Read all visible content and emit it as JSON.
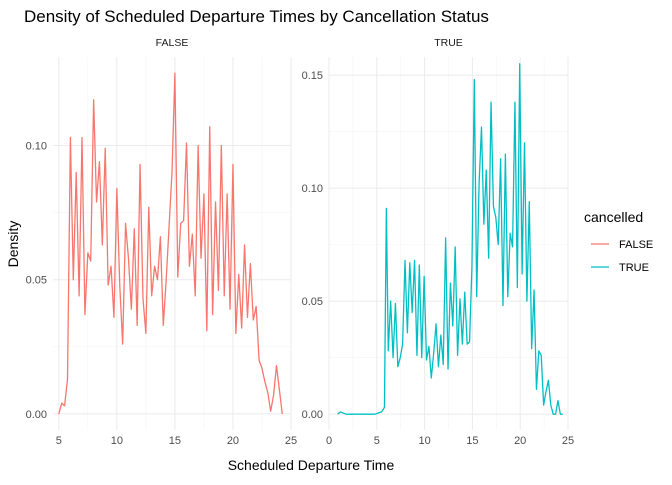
{
  "chart_data": {
    "type": "line",
    "title": "Density of Scheduled Departure Times by Cancellation Status",
    "xlabel": "Scheduled Departure Time",
    "ylabel": "Density",
    "grid": true,
    "legend": {
      "title": "cancelled",
      "position": "right",
      "entries": [
        {
          "label": "FALSE",
          "color": "#F8766D"
        },
        {
          "label": "TRUE",
          "color": "#00BFC4"
        }
      ]
    },
    "panels": [
      {
        "strip": "FALSE",
        "color": "#F8766D",
        "xlim": [
          4.5,
          25.0
        ],
        "ylim": [
          -0.006,
          0.133
        ],
        "x_ticks": [
          5,
          10,
          15,
          20,
          25
        ],
        "x_tick_labels": [
          "5",
          "10",
          "15",
          "20",
          "25"
        ],
        "y_ticks": [
          0,
          0.05,
          0.1
        ],
        "y_tick_labels": [
          "0.00",
          "0.05",
          "0.10"
        ],
        "x": [
          5.0,
          5.25,
          5.5,
          5.75,
          6.0,
          6.25,
          6.5,
          6.75,
          7.0,
          7.25,
          7.5,
          7.75,
          8.0,
          8.25,
          8.5,
          8.75,
          9.0,
          9.25,
          9.5,
          9.75,
          10.0,
          10.25,
          10.5,
          10.75,
          11.0,
          11.25,
          11.5,
          11.75,
          12.0,
          12.25,
          12.5,
          12.75,
          13.0,
          13.25,
          13.5,
          13.75,
          14.0,
          14.25,
          14.5,
          14.75,
          15.0,
          15.25,
          15.5,
          15.75,
          16.0,
          16.25,
          16.5,
          16.75,
          17.0,
          17.25,
          17.5,
          17.75,
          18.0,
          18.25,
          18.5,
          18.75,
          19.0,
          19.25,
          19.5,
          19.75,
          20.0,
          20.25,
          20.5,
          20.75,
          21.0,
          21.25,
          21.5,
          21.75,
          22.0,
          22.25,
          22.5,
          22.75,
          23.0,
          23.25,
          23.5,
          23.75,
          24.0,
          24.25
        ],
        "y": [
          0.0,
          0.004,
          0.003,
          0.013,
          0.103,
          0.05,
          0.09,
          0.044,
          0.103,
          0.037,
          0.06,
          0.057,
          0.117,
          0.079,
          0.094,
          0.063,
          0.099,
          0.048,
          0.055,
          0.036,
          0.084,
          0.048,
          0.026,
          0.071,
          0.058,
          0.039,
          0.069,
          0.033,
          0.093,
          0.043,
          0.03,
          0.077,
          0.044,
          0.055,
          0.05,
          0.066,
          0.033,
          0.05,
          0.07,
          0.09,
          0.127,
          0.051,
          0.071,
          0.072,
          0.101,
          0.055,
          0.067,
          0.044,
          0.1,
          0.058,
          0.082,
          0.031,
          0.107,
          0.037,
          0.079,
          0.046,
          0.1,
          0.044,
          0.082,
          0.039,
          0.093,
          0.03,
          0.052,
          0.032,
          0.063,
          0.036,
          0.056,
          0.035,
          0.04,
          0.02,
          0.017,
          0.012,
          0.008,
          0.001,
          0.007,
          0.018,
          0.009,
          0.0
        ]
      },
      {
        "strip": "TRUE",
        "color": "#00BFC4",
        "xlim": [
          0.0,
          25.0
        ],
        "ylim": [
          -0.007,
          0.158
        ],
        "x_ticks": [
          0,
          5,
          10,
          15,
          20,
          25
        ],
        "x_tick_labels": [
          "0",
          "5",
          "10",
          "15",
          "20",
          "25"
        ],
        "y_ticks": [
          0,
          0.05,
          0.1,
          0.15
        ],
        "y_tick_labels": [
          "0.00",
          "0.05",
          "0.10",
          "0.15"
        ],
        "x": [
          0.9,
          1.2,
          1.8,
          2.5,
          3.2,
          4.0,
          4.8,
          5.5,
          5.8,
          6.0,
          6.2,
          6.45,
          6.7,
          6.95,
          7.2,
          7.45,
          7.7,
          7.95,
          8.2,
          8.45,
          8.7,
          8.95,
          9.2,
          9.45,
          9.7,
          9.95,
          10.2,
          10.45,
          10.7,
          10.95,
          11.2,
          11.45,
          11.7,
          11.95,
          12.2,
          12.45,
          12.7,
          12.95,
          13.2,
          13.45,
          13.7,
          13.95,
          14.2,
          14.45,
          14.7,
          14.95,
          15.2,
          15.45,
          15.7,
          15.95,
          16.2,
          16.45,
          16.7,
          16.95,
          17.2,
          17.45,
          17.7,
          17.95,
          18.2,
          18.45,
          18.7,
          18.95,
          19.2,
          19.45,
          19.7,
          19.95,
          20.2,
          20.45,
          20.7,
          20.95,
          21.2,
          21.45,
          21.7,
          21.95,
          22.2,
          22.45,
          22.7,
          22.95,
          23.2,
          23.45,
          23.7,
          23.95,
          24.2,
          24.45
        ],
        "y": [
          0.0,
          0.001,
          0.0,
          0.0,
          0.0,
          0.0,
          0.0,
          0.001,
          0.003,
          0.091,
          0.028,
          0.05,
          0.025,
          0.049,
          0.021,
          0.025,
          0.031,
          0.068,
          0.036,
          0.067,
          0.045,
          0.068,
          0.026,
          0.066,
          0.025,
          0.061,
          0.024,
          0.03,
          0.016,
          0.027,
          0.04,
          0.021,
          0.035,
          0.022,
          0.078,
          0.02,
          0.058,
          0.039,
          0.074,
          0.026,
          0.051,
          0.031,
          0.054,
          0.031,
          0.032,
          0.065,
          0.148,
          0.052,
          0.102,
          0.127,
          0.084,
          0.108,
          0.069,
          0.138,
          0.092,
          0.087,
          0.075,
          0.113,
          0.048,
          0.115,
          0.052,
          0.08,
          0.074,
          0.138,
          0.056,
          0.155,
          0.062,
          0.12,
          0.05,
          0.094,
          0.029,
          0.055,
          0.011,
          0.028,
          0.026,
          0.004,
          0.01,
          0.015,
          0.004,
          0.0,
          0.0,
          0.006,
          0.0,
          0.0
        ]
      }
    ]
  }
}
